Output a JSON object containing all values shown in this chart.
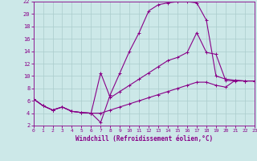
{
  "xlabel": "Windchill (Refroidissement éolien,°C)",
  "bg_color": "#cce8e8",
  "grid_color": "#aacccc",
  "line_color": "#880088",
  "xlim": [
    0,
    23
  ],
  "ylim": [
    2,
    22
  ],
  "xticks": [
    0,
    1,
    2,
    3,
    4,
    5,
    6,
    7,
    8,
    9,
    10,
    11,
    12,
    13,
    14,
    15,
    16,
    17,
    18,
    19,
    20,
    21,
    22,
    23
  ],
  "yticks": [
    2,
    4,
    6,
    8,
    10,
    12,
    14,
    16,
    18,
    20,
    22
  ],
  "curve_top_x": [
    0,
    1,
    2,
    3,
    4,
    5,
    6,
    7,
    8,
    9,
    10,
    11,
    12,
    13,
    14,
    15,
    16,
    17,
    18,
    19,
    20,
    21,
    22,
    23
  ],
  "curve_top_y": [
    6.3,
    5.2,
    4.5,
    5.0,
    4.3,
    4.1,
    4.0,
    2.5,
    7.0,
    10.5,
    14.0,
    17.0,
    20.5,
    21.5,
    21.8,
    22.0,
    22.0,
    21.8,
    19.0,
    10.0,
    9.5,
    9.3,
    9.2,
    9.2
  ],
  "curve_mid_x": [
    0,
    1,
    2,
    3,
    4,
    5,
    6,
    7,
    8,
    9,
    10,
    11,
    12,
    13,
    14,
    15,
    16,
    17,
    18,
    19,
    20,
    21,
    22,
    23
  ],
  "curve_mid_y": [
    6.3,
    5.2,
    4.5,
    5.0,
    4.3,
    4.1,
    4.0,
    10.5,
    6.5,
    7.5,
    8.5,
    9.5,
    10.5,
    11.5,
    12.5,
    13.0,
    13.8,
    17.0,
    13.8,
    13.5,
    9.3,
    9.2,
    9.2,
    9.2
  ],
  "curve_bot_x": [
    0,
    1,
    2,
    3,
    4,
    5,
    6,
    7,
    8,
    9,
    10,
    11,
    12,
    13,
    14,
    15,
    16,
    17,
    18,
    19,
    20,
    21,
    22,
    23
  ],
  "curve_bot_y": [
    6.3,
    5.2,
    4.5,
    5.0,
    4.3,
    4.1,
    4.0,
    4.0,
    4.5,
    5.0,
    5.5,
    6.0,
    6.5,
    7.0,
    7.5,
    8.0,
    8.5,
    9.0,
    9.0,
    8.5,
    8.2,
    9.3,
    9.2,
    9.2
  ],
  "marker": "+",
  "markersize": 3.5,
  "linewidth": 0.8
}
